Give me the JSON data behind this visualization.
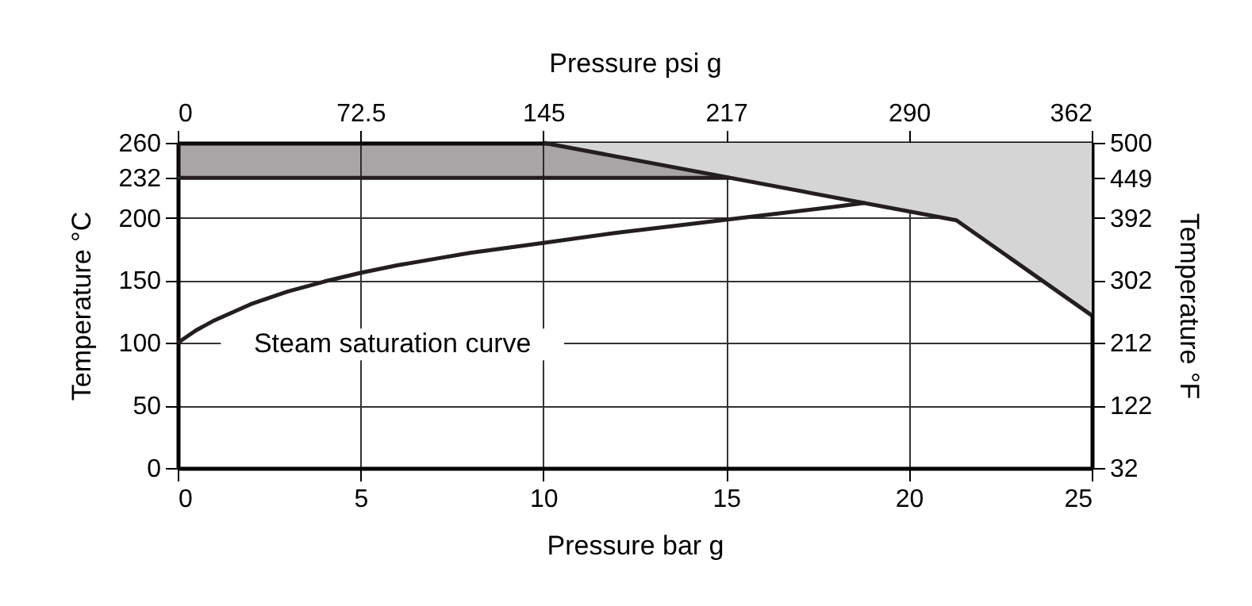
{
  "chart_data": {
    "type": "line",
    "xlabel": "Pressure bar g",
    "x2label": "Pressure psi g",
    "ylabel": "Temperature °C",
    "y2label": "Temperature °F",
    "xlim": [
      0,
      25
    ],
    "xticks": [
      0,
      5,
      10,
      15,
      20,
      25
    ],
    "x2lim": [
      0,
      362.5
    ],
    "x2ticks": [
      0,
      72.5,
      145,
      {
        "value": 217.5,
        "label": "217"
      },
      290,
      {
        "value": 362.5,
        "label": "362"
      }
    ],
    "ylim": [
      0,
      260
    ],
    "yticks": [
      0,
      50,
      100,
      150,
      200,
      232,
      260
    ],
    "y2lim": [
      32,
      500
    ],
    "y2ticks": [
      32,
      122,
      212,
      302,
      392,
      449,
      500
    ],
    "grid": true,
    "series": [
      {
        "color": "#231f20",
        "x": [
          0,
          15.1
        ],
        "values": [
          232,
          232
        ],
        "lower": [
          232,
          232
        ],
        "upper": [
          260,
          260
        ]
      },
      {
        "color": "#231f20",
        "x": [
          10,
          21.3,
          25
        ],
        "values": [
          260,
          198,
          122
        ],
        "lower": [
          260,
          198,
          122
        ],
        "upper": [
          260,
          260,
          260
        ]
      },
      {
        "color": "#231f20",
        "x": [
          0,
          0.5,
          1,
          2,
          3,
          4,
          5,
          6,
          7,
          8,
          9,
          10,
          12,
          14,
          16,
          18,
          18.8
        ],
        "values": [
          100,
          110,
          118,
          131,
          141,
          149,
          156,
          162,
          167,
          172,
          176,
          180,
          188,
          195,
          202,
          209,
          212
        ]
      }
    ],
    "annotations": [
      "Steam saturation curve"
    ]
  }
}
